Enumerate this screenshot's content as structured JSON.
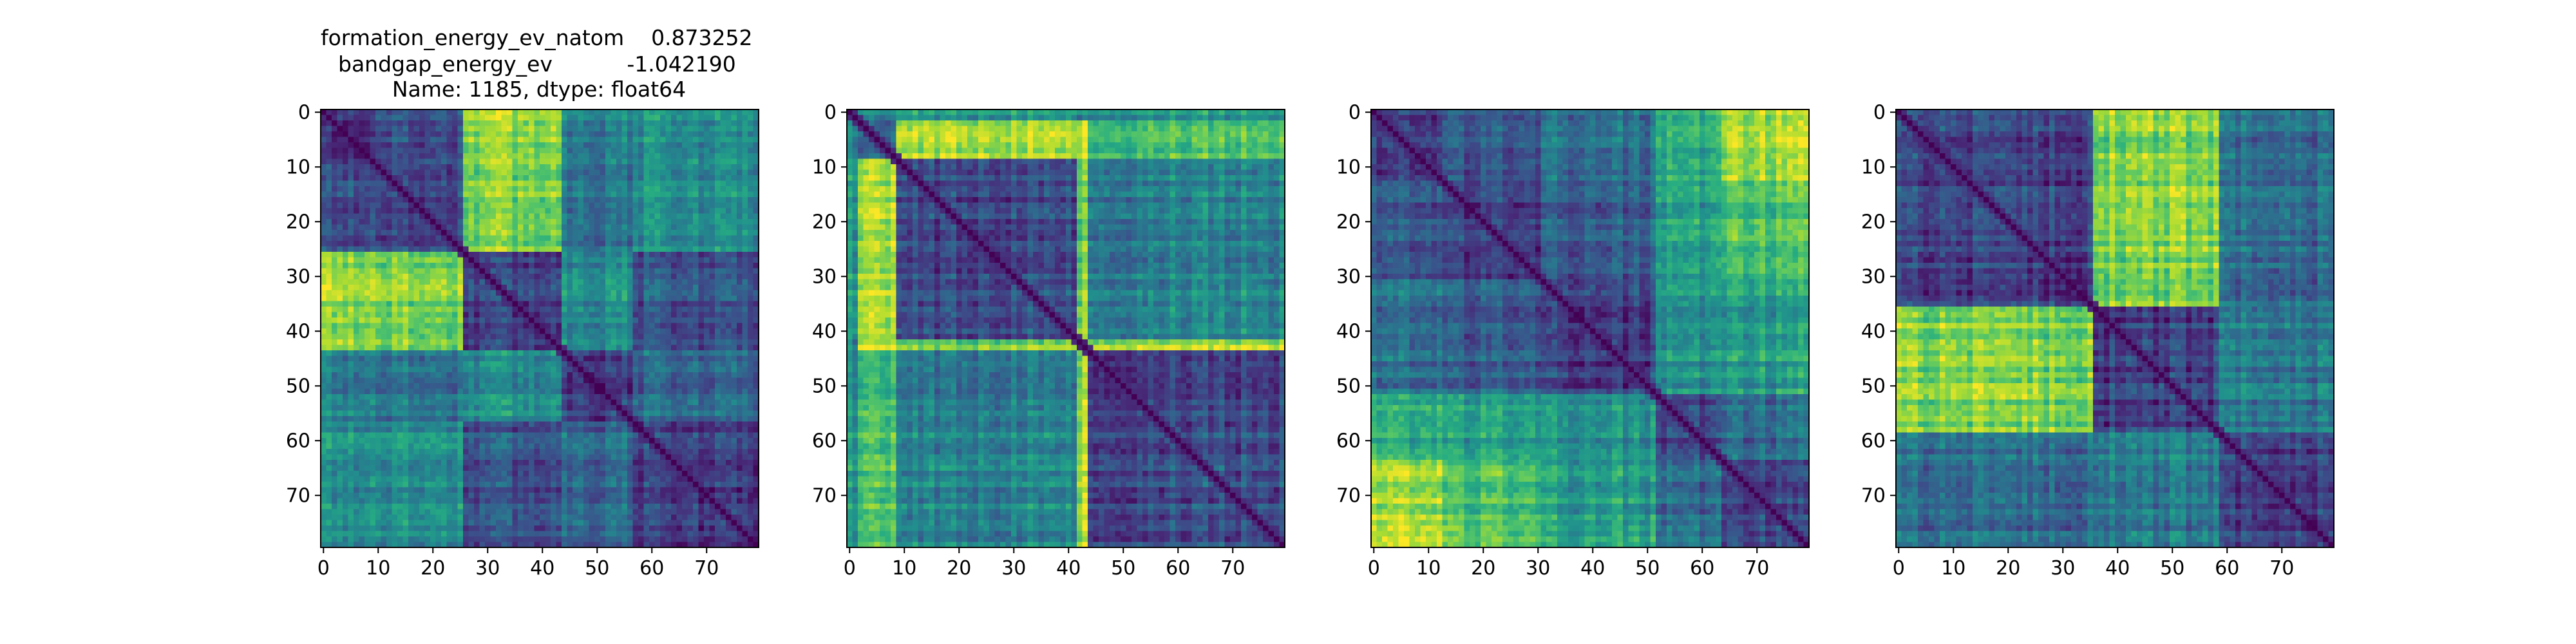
{
  "figure": {
    "title_lines": [
      "formation_energy_ev_natom    0.873252",
      "bandgap_energy_ev           -1.042190",
      "Name: 1185, dtype: float64"
    ]
  },
  "chart_data": [
    {
      "type": "heatmap",
      "title": "",
      "matrix_size": 80,
      "xlabel": "",
      "ylabel": "",
      "xlim": [
        0,
        79
      ],
      "ylim": [
        79,
        0
      ],
      "xticks": [
        0,
        10,
        20,
        30,
        40,
        50,
        60,
        70
      ],
      "yticks": [
        0,
        10,
        20,
        30,
        40,
        50,
        60,
        70
      ],
      "colormap": "viridis",
      "diagonal": "min",
      "blocks": [
        [
          0,
          10
        ],
        [
          10,
          26
        ],
        [
          26,
          44
        ],
        [
          44,
          57
        ],
        [
          57,
          80
        ]
      ],
      "block_levels": [
        [
          0.15,
          0.25,
          0.85,
          0.45,
          0.5
        ],
        [
          0.25,
          0.22,
          0.8,
          0.4,
          0.5
        ],
        [
          0.85,
          0.8,
          0.2,
          0.5,
          0.25
        ],
        [
          0.45,
          0.4,
          0.5,
          0.2,
          0.35
        ],
        [
          0.5,
          0.5,
          0.25,
          0.35,
          0.18
        ]
      ]
    },
    {
      "type": "heatmap",
      "title": "",
      "matrix_size": 80,
      "xlabel": "",
      "ylabel": "",
      "xlim": [
        0,
        79
      ],
      "ylim": [
        79,
        0
      ],
      "xticks": [
        0,
        10,
        20,
        30,
        40,
        50,
        60,
        70
      ],
      "yticks": [
        0,
        10,
        20,
        30,
        40,
        50,
        60,
        70
      ],
      "colormap": "viridis",
      "diagonal": "min",
      "blocks": [
        [
          0,
          2
        ],
        [
          2,
          9
        ],
        [
          9,
          42
        ],
        [
          42,
          44
        ],
        [
          44,
          80
        ]
      ],
      "block_levels": [
        [
          0.1,
          0.45,
          0.55,
          0.5,
          0.55
        ],
        [
          0.45,
          0.3,
          0.85,
          0.9,
          0.7
        ],
        [
          0.55,
          0.85,
          0.22,
          0.8,
          0.45
        ],
        [
          0.5,
          0.9,
          0.8,
          0.1,
          0.9
        ],
        [
          0.55,
          0.7,
          0.45,
          0.9,
          0.25
        ]
      ]
    },
    {
      "type": "heatmap",
      "title": "",
      "matrix_size": 80,
      "xlabel": "",
      "ylabel": "",
      "xlim": [
        0,
        79
      ],
      "ylim": [
        79,
        0
      ],
      "xticks": [
        0,
        10,
        20,
        30,
        40,
        50,
        60,
        70
      ],
      "yticks": [
        0,
        10,
        20,
        30,
        40,
        50,
        60,
        70
      ],
      "colormap": "viridis",
      "diagonal": "min",
      "blocks": [
        [
          0,
          13
        ],
        [
          13,
          31
        ],
        [
          31,
          52
        ],
        [
          52,
          64
        ],
        [
          64,
          80
        ]
      ],
      "block_levels": [
        [
          0.15,
          0.25,
          0.35,
          0.6,
          0.85
        ],
        [
          0.25,
          0.18,
          0.28,
          0.55,
          0.7
        ],
        [
          0.35,
          0.28,
          0.18,
          0.5,
          0.55
        ],
        [
          0.6,
          0.55,
          0.5,
          0.2,
          0.35
        ],
        [
          0.85,
          0.7,
          0.55,
          0.35,
          0.2
        ]
      ]
    },
    {
      "type": "heatmap",
      "title": "",
      "matrix_size": 80,
      "xlabel": "",
      "ylabel": "",
      "xlim": [
        0,
        79
      ],
      "ylim": [
        79,
        0
      ],
      "xticks": [
        0,
        10,
        20,
        30,
        40,
        50,
        60,
        70
      ],
      "yticks": [
        0,
        10,
        20,
        30,
        40,
        50,
        60,
        70
      ],
      "colormap": "viridis",
      "diagonal": "min",
      "blocks": [
        [
          0,
          36
        ],
        [
          36,
          59
        ],
        [
          59,
          80
        ]
      ],
      "block_levels": [
        [
          0.2,
          0.8,
          0.35
        ],
        [
          0.8,
          0.18,
          0.4
        ],
        [
          0.35,
          0.4,
          0.18
        ]
      ]
    }
  ]
}
